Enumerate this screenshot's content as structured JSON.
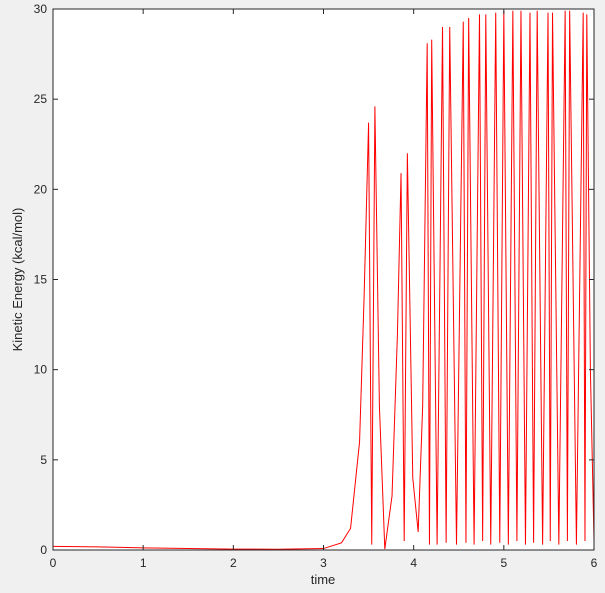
{
  "chart_data": {
    "type": "line",
    "xlabel": "time",
    "ylabel": "Kinetic Energy (kcal/mol)",
    "xlim": [
      0,
      6
    ],
    "ylim": [
      0,
      30
    ],
    "xticks": [
      0,
      1,
      2,
      3,
      4,
      5,
      6
    ],
    "yticks": [
      0,
      5,
      10,
      15,
      20,
      25,
      30
    ],
    "x": [
      0,
      0.5,
      1,
      1.5,
      2,
      2.5,
      3,
      3.2,
      3.3,
      3.4,
      3.45,
      3.5,
      3.535,
      3.57,
      3.62,
      3.68,
      3.76,
      3.82,
      3.86,
      3.895,
      3.93,
      3.99,
      4.05,
      4.1,
      4.15,
      4.175,
      4.2,
      4.26,
      4.32,
      4.36,
      4.4,
      4.475,
      4.55,
      4.58,
      4.61,
      4.67,
      4.73,
      4.765,
      4.8,
      4.855,
      4.91,
      4.955,
      5.0,
      5.05,
      5.1,
      5.145,
      5.19,
      5.24,
      5.29,
      5.33,
      5.37,
      5.43,
      5.49,
      5.515,
      5.54,
      5.61,
      5.68,
      5.705,
      5.73,
      5.805,
      5.88,
      5.9,
      5.92,
      5.96,
      6.0
    ],
    "series": [
      {
        "color": "#ff0000",
        "values": [
          0.2,
          0.17,
          0.12,
          0.08,
          0.05,
          0.04,
          0.08,
          0.4,
          1.2,
          6,
          14,
          23.7,
          0.3,
          24.6,
          8,
          0.05,
          3,
          12,
          20.9,
          0.5,
          22,
          4,
          1,
          8,
          28.1,
          0.3,
          28.3,
          0.3,
          29,
          0.4,
          29,
          0.3,
          29.3,
          0.4,
          29.5,
          0.3,
          29.7,
          0.5,
          29.7,
          0.3,
          29.8,
          0.4,
          29.9,
          0.3,
          29.9,
          0.5,
          29.9,
          0.3,
          29.8,
          0.4,
          29.9,
          0.3,
          29.8,
          0.5,
          29.8,
          0.3,
          29.9,
          0.5,
          29.9,
          0.3,
          29.8,
          0.5,
          29.7,
          10,
          0.5
        ]
      }
    ]
  }
}
